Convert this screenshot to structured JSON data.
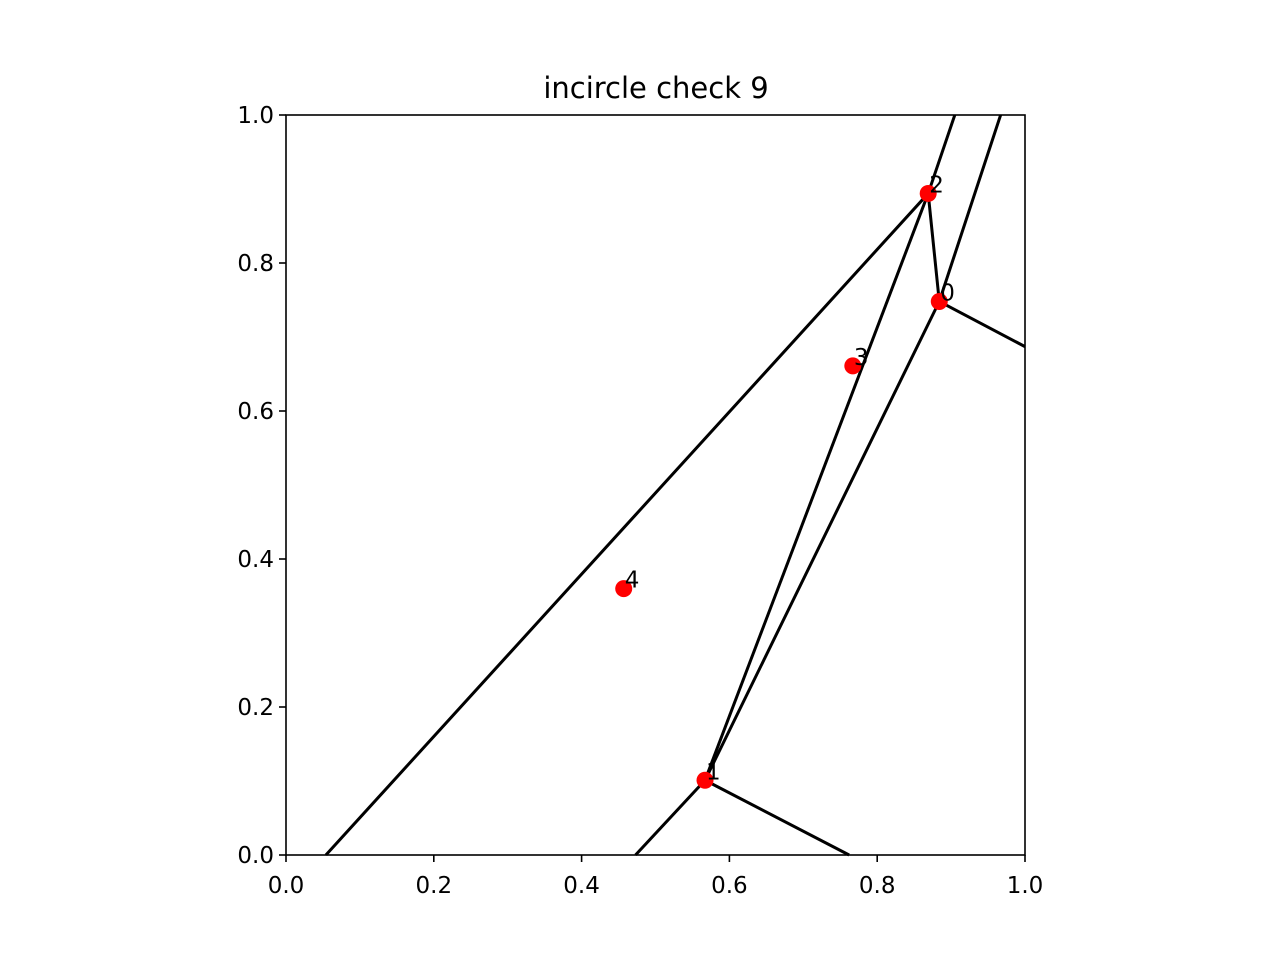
{
  "chart_data": {
    "type": "scatter",
    "title": "incircle check 9",
    "xlabel": "",
    "ylabel": "",
    "xlim": [
      0.0,
      1.0
    ],
    "ylim": [
      0.0,
      1.0
    ],
    "grid": false,
    "x_ticks": [
      "0.0",
      "0.2",
      "0.4",
      "0.6",
      "0.8",
      "1.0"
    ],
    "y_ticks": [
      "0.0",
      "0.2",
      "0.4",
      "0.6",
      "0.8",
      "1.0"
    ],
    "point_color": "#ff0000",
    "line_color": "#000000",
    "points": [
      {
        "label": "0",
        "x": 0.884,
        "y": 0.748
      },
      {
        "label": "1",
        "x": 0.567,
        "y": 0.101
      },
      {
        "label": "2",
        "x": 0.869,
        "y": 0.894
      },
      {
        "label": "3",
        "x": 0.767,
        "y": 0.661
      },
      {
        "label": "4",
        "x": 0.457,
        "y": 0.36
      }
    ],
    "segments": [
      [
        [
          0.054,
          0.0
        ],
        [
          0.869,
          0.894
        ]
      ],
      [
        [
          0.869,
          0.894
        ],
        [
          0.905,
          1.0
        ]
      ],
      [
        [
          0.869,
          0.894
        ],
        [
          0.884,
          0.748
        ]
      ],
      [
        [
          0.884,
          0.748
        ],
        [
          1.0,
          0.687
        ]
      ],
      [
        [
          0.884,
          0.748
        ],
        [
          0.967,
          1.0
        ]
      ],
      [
        [
          0.869,
          0.894
        ],
        [
          0.567,
          0.101
        ]
      ],
      [
        [
          0.884,
          0.748
        ],
        [
          0.567,
          0.101
        ]
      ],
      [
        [
          0.567,
          0.101
        ],
        [
          0.473,
          0.0
        ]
      ],
      [
        [
          0.567,
          0.101
        ],
        [
          0.762,
          0.0
        ]
      ]
    ]
  }
}
